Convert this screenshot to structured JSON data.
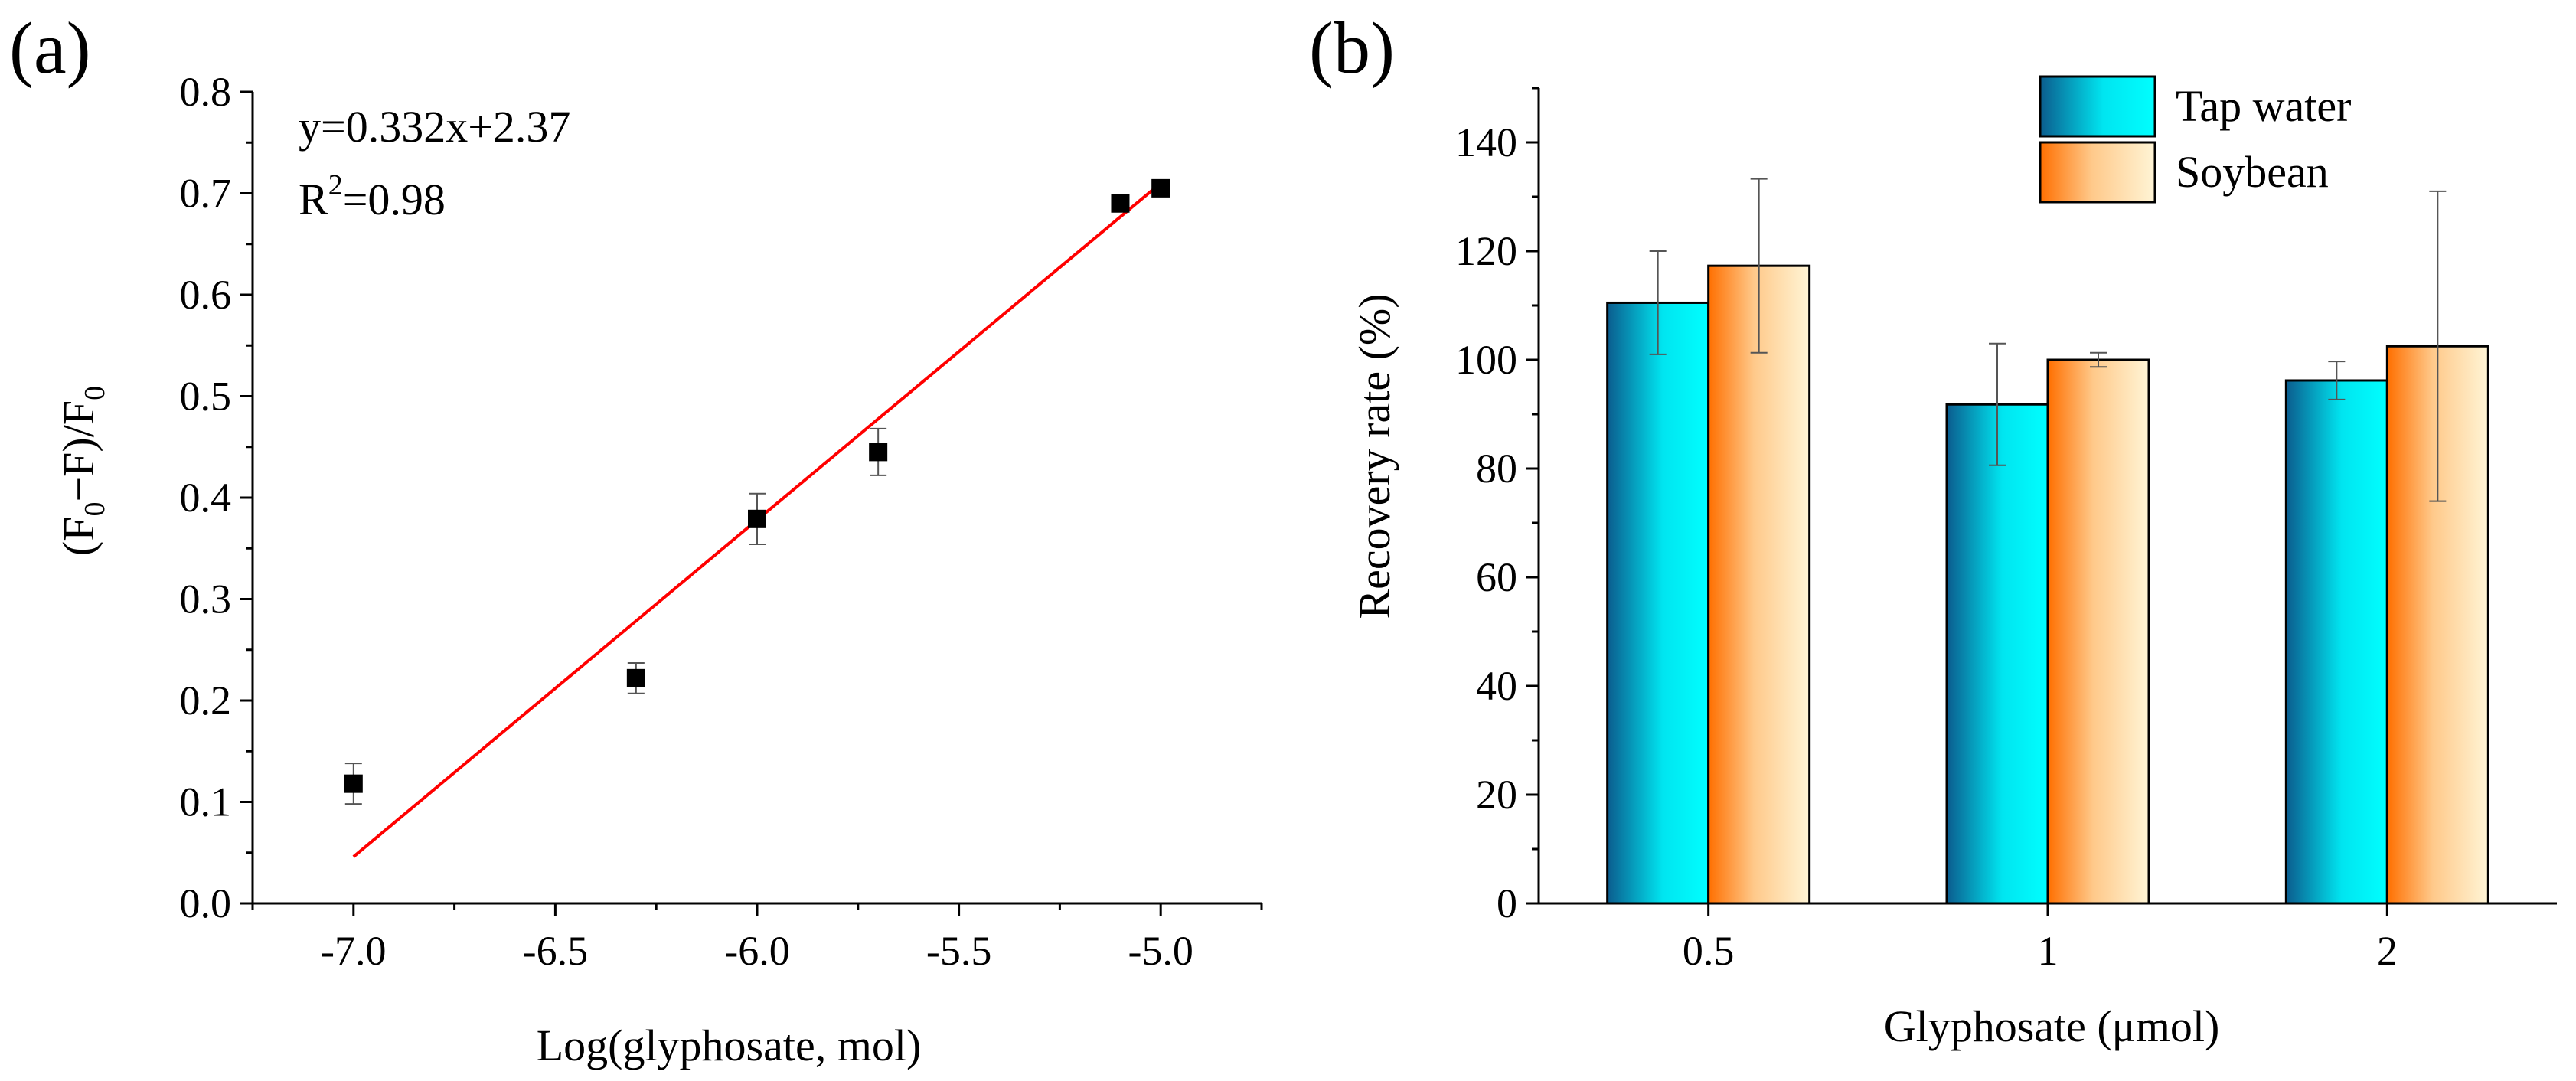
{
  "chart_data": [
    {
      "type": "scatter",
      "panel": "(a)",
      "title": "",
      "xlabel": "Log(glyphosate, mol)",
      "ylabel": "(F0−F)/F0",
      "xlim": [
        -7.25,
        -4.75
      ],
      "ylim": [
        0.0,
        0.8
      ],
      "xticks": [
        -7.0,
        -6.5,
        -6.0,
        -5.5,
        -5.0
      ],
      "xtick_labels": [
        "-7.0",
        "-6.5",
        "-6.0",
        "-5.5",
        "-5.0"
      ],
      "yticks": [
        0.0,
        0.1,
        0.2,
        0.3,
        0.4,
        0.5,
        0.6,
        0.7,
        0.8
      ],
      "ytick_labels": [
        "0.0",
        "0.1",
        "0.2",
        "0.3",
        "0.4",
        "0.5",
        "0.6",
        "0.7",
        "0.8"
      ],
      "points": [
        {
          "x": -7.0,
          "y": 0.118,
          "err": 0.02
        },
        {
          "x": -6.3,
          "y": 0.222,
          "err": 0.015
        },
        {
          "x": -6.0,
          "y": 0.379,
          "err": 0.025
        },
        {
          "x": -5.7,
          "y": 0.445,
          "err": 0.023
        },
        {
          "x": -5.1,
          "y": 0.69,
          "err": 0.0
        },
        {
          "x": -5.0,
          "y": 0.705,
          "err": 0.0
        }
      ],
      "fit": {
        "slope": 0.332,
        "intercept": 2.37,
        "x_from": -7.0,
        "x_to": -5.0,
        "color": "#ff0000"
      },
      "annotations": {
        "equation": "y=0.332x+2.37",
        "r2_prefix": "R",
        "r2_sup": "2",
        "r2_suffix": "=0.98"
      }
    },
    {
      "type": "bar",
      "panel": "(b)",
      "title": "",
      "xlabel": "Glyphosate (μmol)",
      "ylabel": "Recovery rate (%)",
      "ylim": [
        0,
        150
      ],
      "yticks": [
        0,
        20,
        40,
        60,
        80,
        100,
        120,
        140
      ],
      "ytick_labels": [
        "0",
        "20",
        "40",
        "60",
        "80",
        "100",
        "120",
        "140"
      ],
      "categories": [
        "0.5",
        "1",
        "2"
      ],
      "series": [
        {
          "name": "Tap water",
          "values": [
            110.5,
            91.8,
            96.2
          ],
          "errors": [
            9.5,
            11.2,
            3.5
          ],
          "color_from": "#0b5c8e",
          "color_to": "#00ffff"
        },
        {
          "name": "Soybean",
          "values": [
            117.3,
            100.0,
            102.5
          ],
          "errors": [
            16.0,
            1.3,
            28.5
          ],
          "color_from": "#ff6f00",
          "color_to": "#fff5d6"
        }
      ],
      "legend_position": "top-right"
    }
  ]
}
